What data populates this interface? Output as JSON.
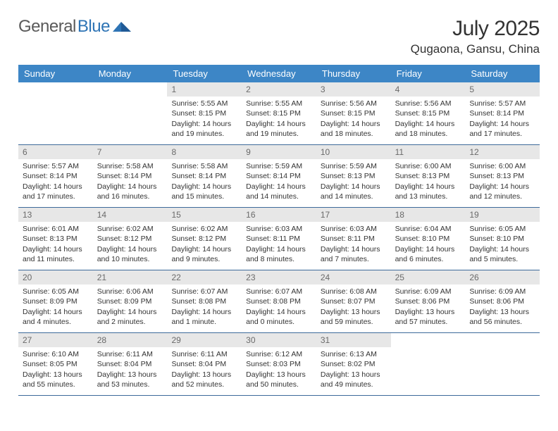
{
  "brand": {
    "name_a": "General",
    "name_b": "Blue",
    "color_a": "#5a5a5a",
    "color_b": "#2e74b5",
    "icon_color": "#2e74b5"
  },
  "header": {
    "title": "July 2025",
    "location": "Qugaona, Gansu, China"
  },
  "colors": {
    "header_bg": "#3d86c6",
    "header_text": "#ffffff",
    "row_border": "#3d6a9a",
    "num_bg": "#e7e7e7",
    "num_text": "#6a6a6a",
    "body_text": "#333333",
    "page_bg": "#ffffff"
  },
  "daynames": [
    "Sunday",
    "Monday",
    "Tuesday",
    "Wednesday",
    "Thursday",
    "Friday",
    "Saturday"
  ],
  "weeks": [
    [
      {
        "n": "",
        "sr": "",
        "ss": "",
        "dl": ""
      },
      {
        "n": "",
        "sr": "",
        "ss": "",
        "dl": ""
      },
      {
        "n": "1",
        "sr": "Sunrise: 5:55 AM",
        "ss": "Sunset: 8:15 PM",
        "dl": "Daylight: 14 hours and 19 minutes."
      },
      {
        "n": "2",
        "sr": "Sunrise: 5:55 AM",
        "ss": "Sunset: 8:15 PM",
        "dl": "Daylight: 14 hours and 19 minutes."
      },
      {
        "n": "3",
        "sr": "Sunrise: 5:56 AM",
        "ss": "Sunset: 8:15 PM",
        "dl": "Daylight: 14 hours and 18 minutes."
      },
      {
        "n": "4",
        "sr": "Sunrise: 5:56 AM",
        "ss": "Sunset: 8:15 PM",
        "dl": "Daylight: 14 hours and 18 minutes."
      },
      {
        "n": "5",
        "sr": "Sunrise: 5:57 AM",
        "ss": "Sunset: 8:14 PM",
        "dl": "Daylight: 14 hours and 17 minutes."
      }
    ],
    [
      {
        "n": "6",
        "sr": "Sunrise: 5:57 AM",
        "ss": "Sunset: 8:14 PM",
        "dl": "Daylight: 14 hours and 17 minutes."
      },
      {
        "n": "7",
        "sr": "Sunrise: 5:58 AM",
        "ss": "Sunset: 8:14 PM",
        "dl": "Daylight: 14 hours and 16 minutes."
      },
      {
        "n": "8",
        "sr": "Sunrise: 5:58 AM",
        "ss": "Sunset: 8:14 PM",
        "dl": "Daylight: 14 hours and 15 minutes."
      },
      {
        "n": "9",
        "sr": "Sunrise: 5:59 AM",
        "ss": "Sunset: 8:14 PM",
        "dl": "Daylight: 14 hours and 14 minutes."
      },
      {
        "n": "10",
        "sr": "Sunrise: 5:59 AM",
        "ss": "Sunset: 8:13 PM",
        "dl": "Daylight: 14 hours and 14 minutes."
      },
      {
        "n": "11",
        "sr": "Sunrise: 6:00 AM",
        "ss": "Sunset: 8:13 PM",
        "dl": "Daylight: 14 hours and 13 minutes."
      },
      {
        "n": "12",
        "sr": "Sunrise: 6:00 AM",
        "ss": "Sunset: 8:13 PM",
        "dl": "Daylight: 14 hours and 12 minutes."
      }
    ],
    [
      {
        "n": "13",
        "sr": "Sunrise: 6:01 AM",
        "ss": "Sunset: 8:13 PM",
        "dl": "Daylight: 14 hours and 11 minutes."
      },
      {
        "n": "14",
        "sr": "Sunrise: 6:02 AM",
        "ss": "Sunset: 8:12 PM",
        "dl": "Daylight: 14 hours and 10 minutes."
      },
      {
        "n": "15",
        "sr": "Sunrise: 6:02 AM",
        "ss": "Sunset: 8:12 PM",
        "dl": "Daylight: 14 hours and 9 minutes."
      },
      {
        "n": "16",
        "sr": "Sunrise: 6:03 AM",
        "ss": "Sunset: 8:11 PM",
        "dl": "Daylight: 14 hours and 8 minutes."
      },
      {
        "n": "17",
        "sr": "Sunrise: 6:03 AM",
        "ss": "Sunset: 8:11 PM",
        "dl": "Daylight: 14 hours and 7 minutes."
      },
      {
        "n": "18",
        "sr": "Sunrise: 6:04 AM",
        "ss": "Sunset: 8:10 PM",
        "dl": "Daylight: 14 hours and 6 minutes."
      },
      {
        "n": "19",
        "sr": "Sunrise: 6:05 AM",
        "ss": "Sunset: 8:10 PM",
        "dl": "Daylight: 14 hours and 5 minutes."
      }
    ],
    [
      {
        "n": "20",
        "sr": "Sunrise: 6:05 AM",
        "ss": "Sunset: 8:09 PM",
        "dl": "Daylight: 14 hours and 4 minutes."
      },
      {
        "n": "21",
        "sr": "Sunrise: 6:06 AM",
        "ss": "Sunset: 8:09 PM",
        "dl": "Daylight: 14 hours and 2 minutes."
      },
      {
        "n": "22",
        "sr": "Sunrise: 6:07 AM",
        "ss": "Sunset: 8:08 PM",
        "dl": "Daylight: 14 hours and 1 minute."
      },
      {
        "n": "23",
        "sr": "Sunrise: 6:07 AM",
        "ss": "Sunset: 8:08 PM",
        "dl": "Daylight: 14 hours and 0 minutes."
      },
      {
        "n": "24",
        "sr": "Sunrise: 6:08 AM",
        "ss": "Sunset: 8:07 PM",
        "dl": "Daylight: 13 hours and 59 minutes."
      },
      {
        "n": "25",
        "sr": "Sunrise: 6:09 AM",
        "ss": "Sunset: 8:06 PM",
        "dl": "Daylight: 13 hours and 57 minutes."
      },
      {
        "n": "26",
        "sr": "Sunrise: 6:09 AM",
        "ss": "Sunset: 8:06 PM",
        "dl": "Daylight: 13 hours and 56 minutes."
      }
    ],
    [
      {
        "n": "27",
        "sr": "Sunrise: 6:10 AM",
        "ss": "Sunset: 8:05 PM",
        "dl": "Daylight: 13 hours and 55 minutes."
      },
      {
        "n": "28",
        "sr": "Sunrise: 6:11 AM",
        "ss": "Sunset: 8:04 PM",
        "dl": "Daylight: 13 hours and 53 minutes."
      },
      {
        "n": "29",
        "sr": "Sunrise: 6:11 AM",
        "ss": "Sunset: 8:04 PM",
        "dl": "Daylight: 13 hours and 52 minutes."
      },
      {
        "n": "30",
        "sr": "Sunrise: 6:12 AM",
        "ss": "Sunset: 8:03 PM",
        "dl": "Daylight: 13 hours and 50 minutes."
      },
      {
        "n": "31",
        "sr": "Sunrise: 6:13 AM",
        "ss": "Sunset: 8:02 PM",
        "dl": "Daylight: 13 hours and 49 minutes."
      },
      {
        "n": "",
        "sr": "",
        "ss": "",
        "dl": ""
      },
      {
        "n": "",
        "sr": "",
        "ss": "",
        "dl": ""
      }
    ]
  ]
}
